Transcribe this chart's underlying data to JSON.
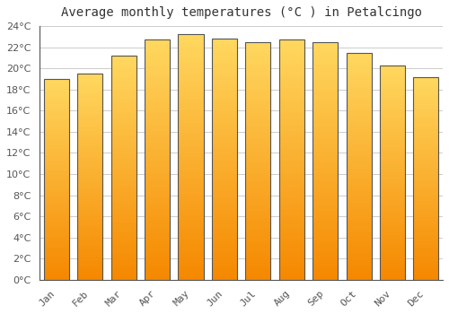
{
  "title": "Average monthly temperatures (°C ) in Petalcingo",
  "months": [
    "Jan",
    "Feb",
    "Mar",
    "Apr",
    "May",
    "Jun",
    "Jul",
    "Aug",
    "Sep",
    "Oct",
    "Nov",
    "Dec"
  ],
  "values": [
    19.0,
    19.5,
    21.2,
    22.7,
    23.2,
    22.8,
    22.5,
    22.7,
    22.5,
    21.5,
    20.3,
    19.2
  ],
  "bar_color": "#FFA500",
  "bar_edge_color": "#333333",
  "background_color": "#ffffff",
  "plot_bg_color": "#ffffff",
  "grid_color": "#cccccc",
  "ylim": [
    0,
    24
  ],
  "ytick_step": 2,
  "title_fontsize": 10,
  "tick_fontsize": 8,
  "bar_width": 0.75,
  "title_color": "#333333",
  "tick_color": "#555555"
}
